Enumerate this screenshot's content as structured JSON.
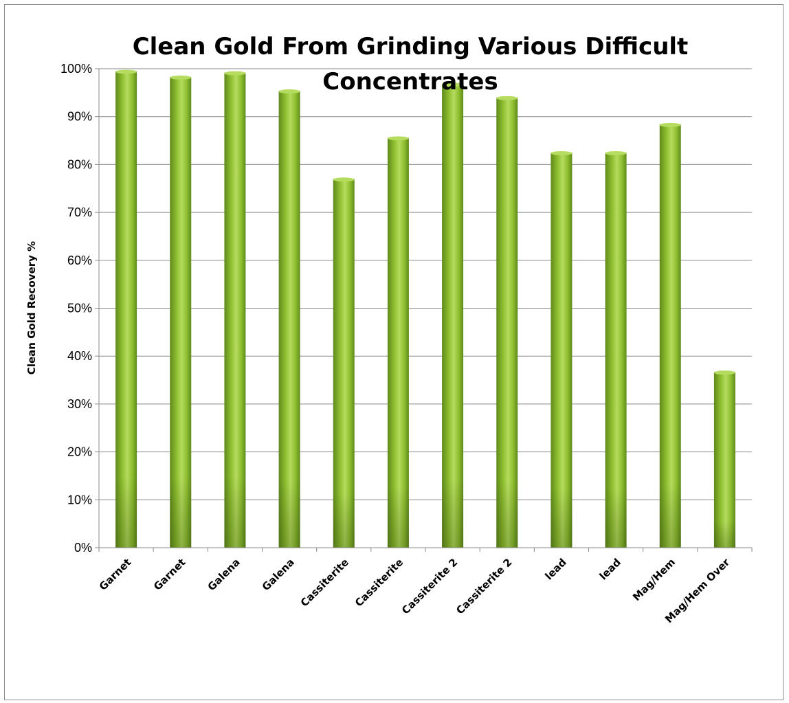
{
  "chart_data": {
    "type": "bar",
    "title_lines": [
      "Clean Gold From Grinding Various Difficult",
      "Concentrates"
    ],
    "xlabel": "",
    "ylabel": "Clean Gold Recovery %",
    "ylim": [
      0,
      100
    ],
    "y_ticks": [
      "0%",
      "10%",
      "20%",
      "30%",
      "40%",
      "50%",
      "60%",
      "70%",
      "80%",
      "90%",
      "100%"
    ],
    "grid": true,
    "legend": "none",
    "categories": [
      "Garnet",
      "Garnet",
      "Galena",
      "Galena",
      "Cassiterite",
      "Cassiterite",
      "Cassiterite 2",
      "Cassiterite 2",
      "lead",
      "lead",
      "Mag/Hem",
      "Mag/Hem Over"
    ],
    "values": [
      99.5,
      98.3,
      99.2,
      95.4,
      77.0,
      85.6,
      96.8,
      94.0,
      82.5,
      82.5,
      88.4,
      36.7
    ],
    "colors": {
      "bar_dark": "#5f8a1c",
      "bar_mid": "#8cbc2e",
      "bar_light": "#b5dc5e",
      "gridline": "#8a8a8a",
      "axis": "#8a8a8a"
    }
  }
}
